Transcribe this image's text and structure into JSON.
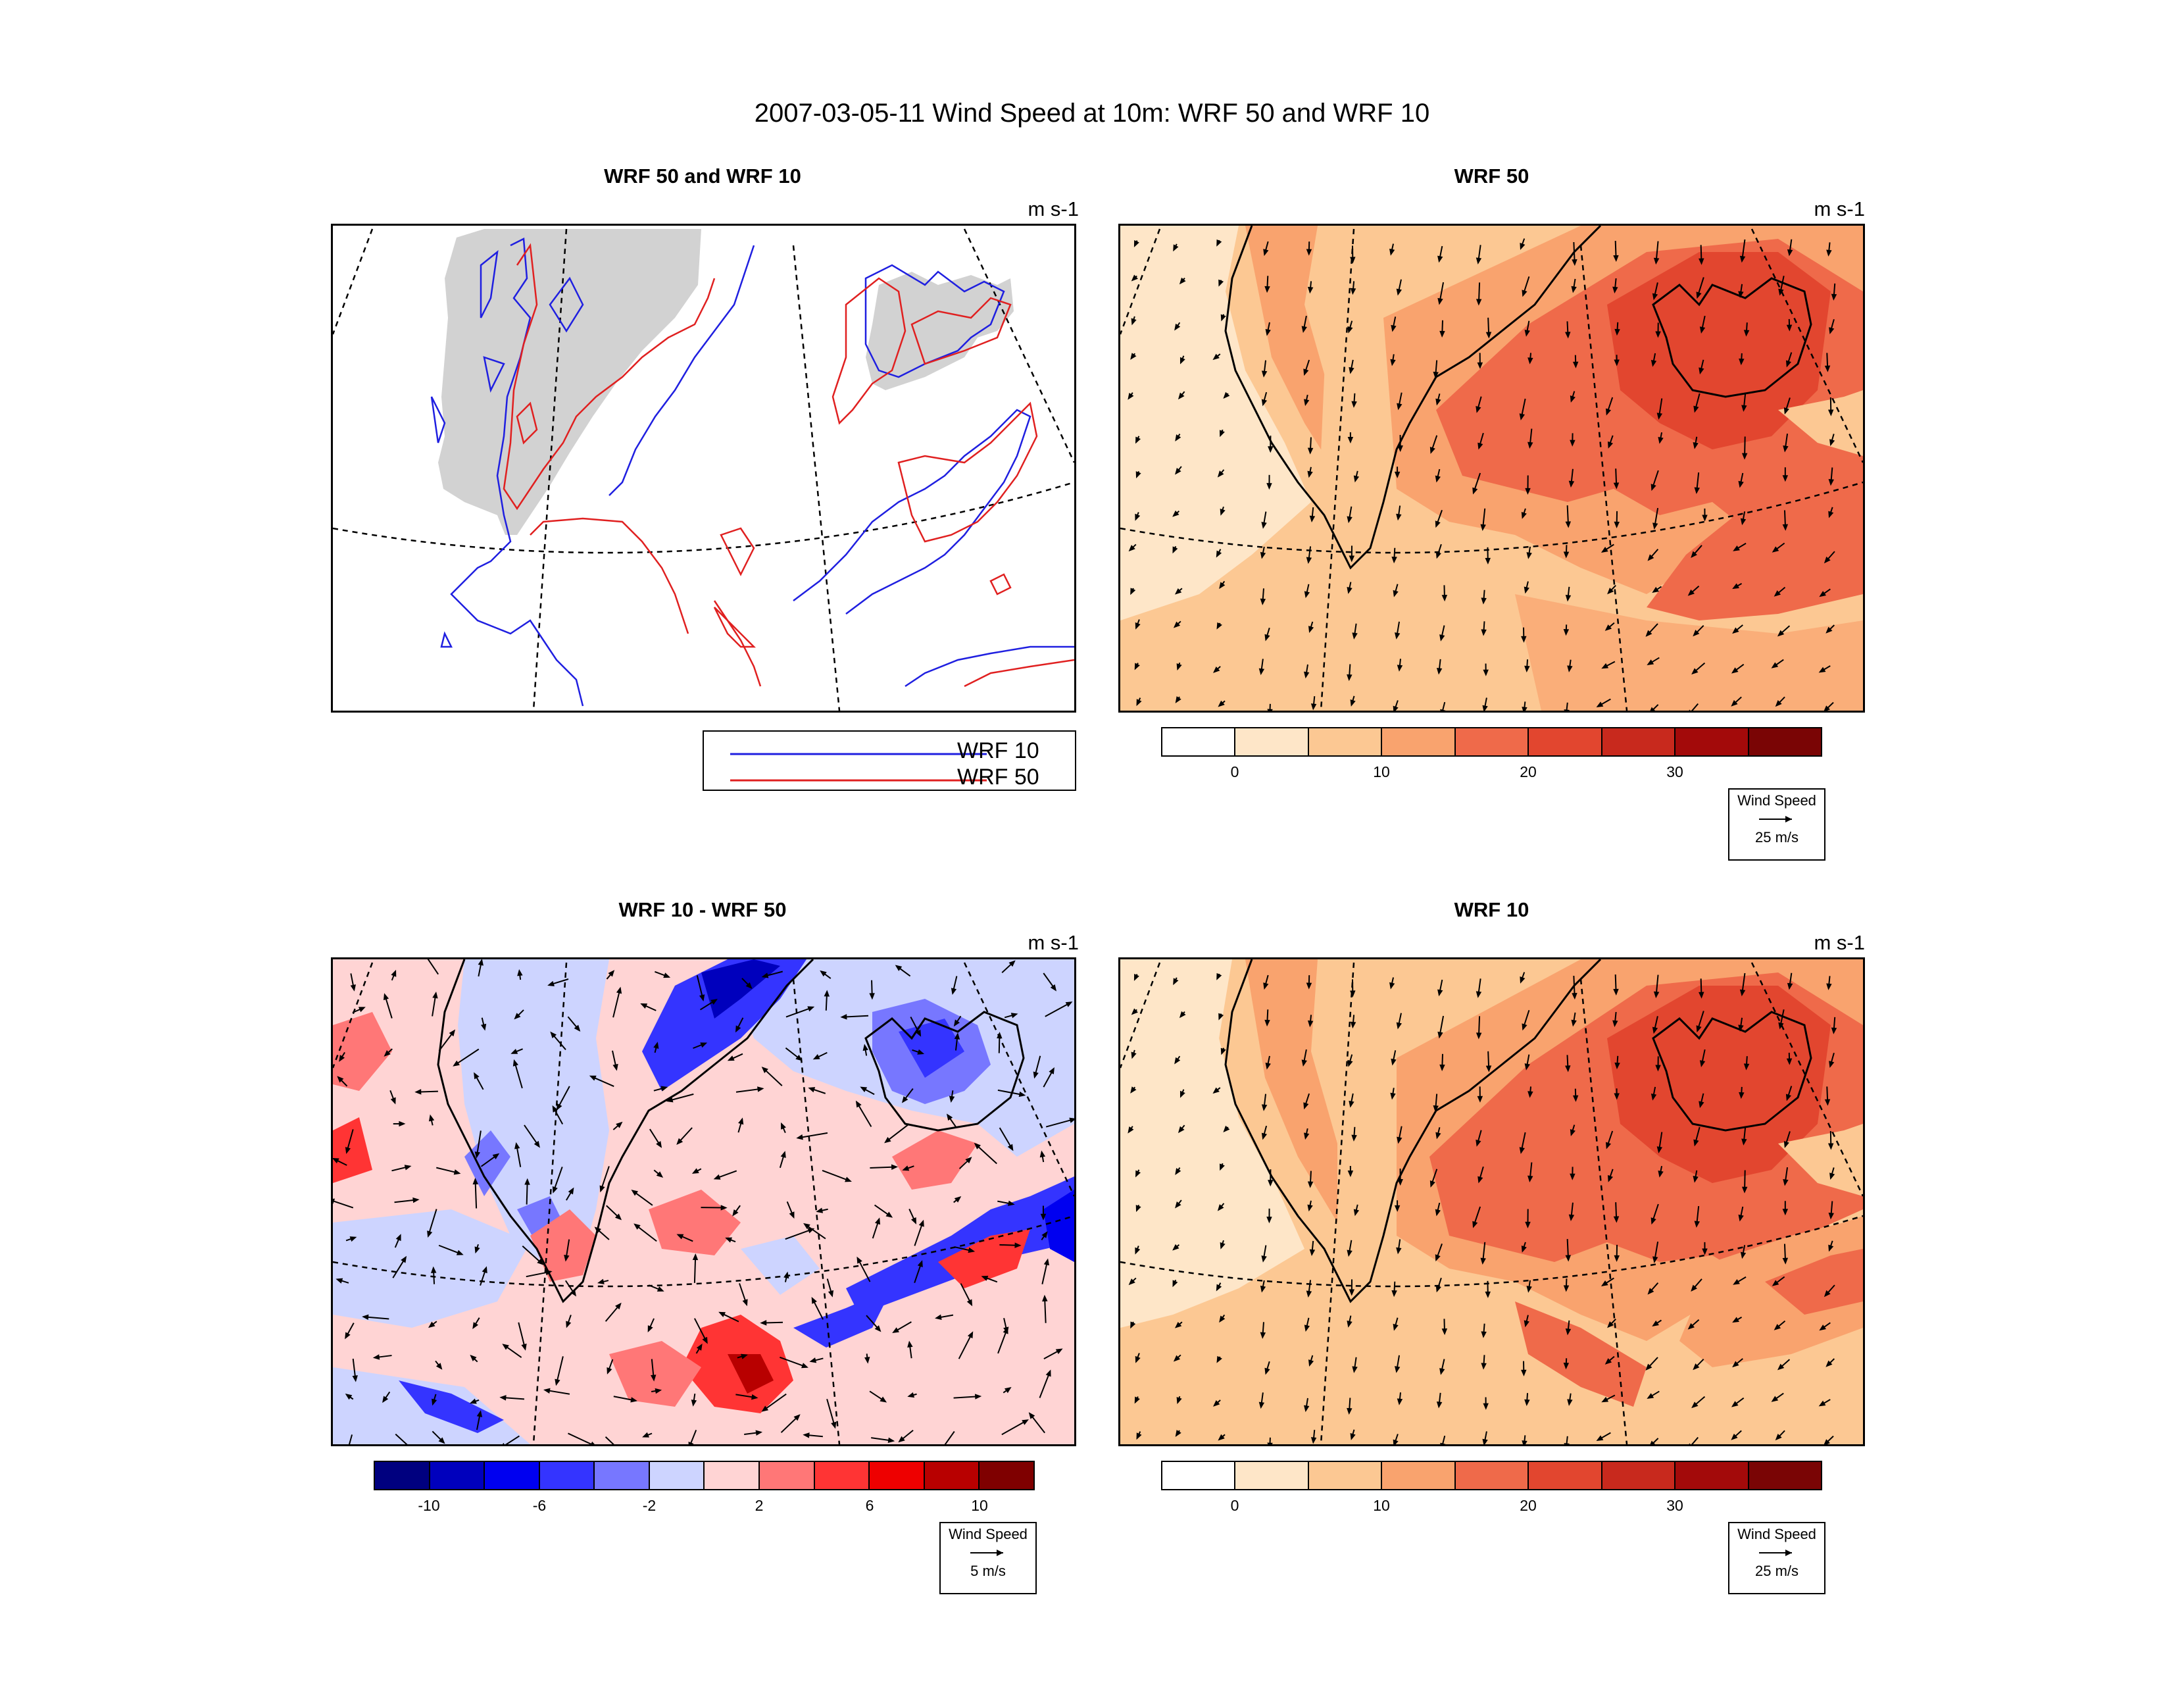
{
  "title": "2007-03-05-11 Wind Speed at 10m: WRF 50 and WRF 10",
  "units": "m s-1",
  "panels": {
    "contour": {
      "title": "WRF 50 and WRF 10"
    },
    "wrf50": {
      "title": "WRF 50"
    },
    "diff": {
      "title": "WRF 10 - WRF 50"
    },
    "wrf10": {
      "title": "WRF 10"
    }
  },
  "legend": {
    "items": [
      {
        "label": "WRF 10",
        "color": "#1f1fe0"
      },
      {
        "label": "WRF 50",
        "color": "#e02020"
      }
    ]
  },
  "speed_colorbar": {
    "colors": [
      "#ffffff",
      "#fee6c8",
      "#fcc893",
      "#f9a36e",
      "#ef6a4a",
      "#e2462f",
      "#c8291d",
      "#a30a0a",
      "#7a0505"
    ],
    "tick_labels": [
      "0",
      "10",
      "20",
      "30"
    ]
  },
  "diff_colorbar": {
    "colors": [
      "#00007f",
      "#0000bd",
      "#0000f0",
      "#3434ff",
      "#7777ff",
      "#cdd4ff",
      "#ffd4d4",
      "#ff7777",
      "#ff3434",
      "#ee0000",
      "#b80000",
      "#7f0000"
    ],
    "tick_labels": [
      "-10",
      "-6",
      "-2",
      "2",
      "6",
      "10"
    ]
  },
  "reference_vectors": {
    "speed": {
      "label": "Wind Speed",
      "value": "25 m/s"
    },
    "diff": {
      "label": "Wind Speed",
      "value": "5 m/s"
    }
  }
}
